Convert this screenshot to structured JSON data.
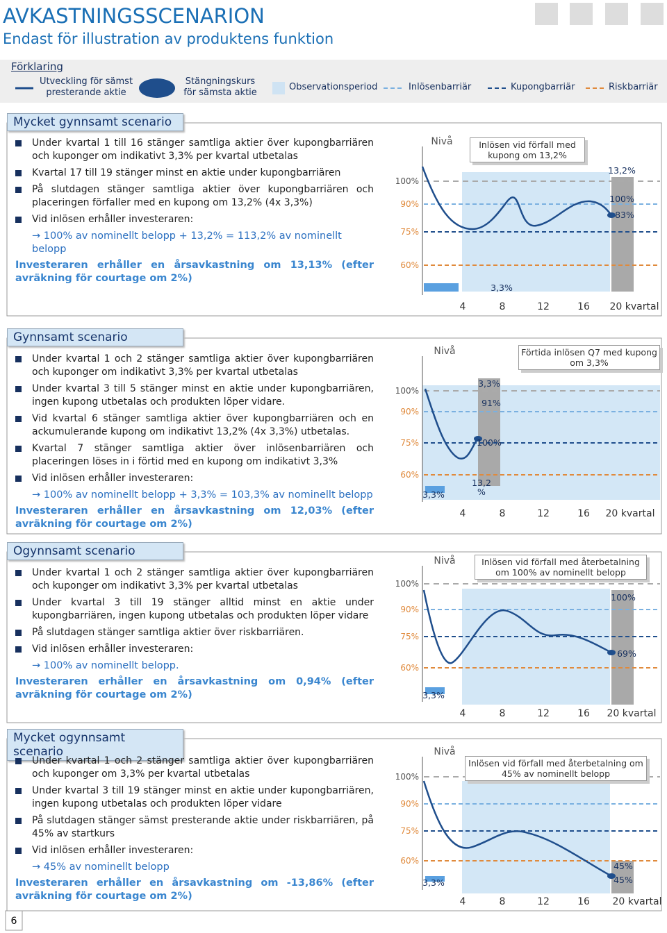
{
  "header": {
    "title": "AVKASTNINGSSCENARION",
    "subtitle": "Endast för illustration av produktens funktion"
  },
  "legend": {
    "heading": "Förklaring",
    "items": [
      "Utveckling för sämst presterande aktie",
      "Stängningskurs för sämsta aktie",
      "Observationsperiod",
      "Inlösenbarriär",
      "Kupongbarriär",
      "Riskbarriär"
    ]
  },
  "scenarios": [
    {
      "title": "Mycket gynnsamt scenario",
      "bullets": [
        "Under kvartal 1 till 16 stänger samtliga aktier över kupongbarriären och kuponger om indikativt 3,3% per kvartal utbetalas",
        "Kvartal 17 till 19 stänger minst en aktie under kupongbarriären",
        "På slutdagen stänger samtliga aktier över kupongbarriären och placeringen förfaller med en kupong om 13,2% (4x 3,3%)",
        "Vid inlösen erhåller investeraren:"
      ],
      "outcome": "100% av nominellt belopp + 13,2% = 113,2% av nominellt belopp",
      "result": "Investeraren erhåller en årsavkastning om 13,13% (efter avräkning för courtage om 2%)",
      "chart": {
        "level": "Nivå",
        "yticks": [
          "100%",
          "90%",
          "75%",
          "60%"
        ],
        "xticks": [
          "4",
          "8",
          "12",
          "16",
          "20 kvartal"
        ],
        "callout": "Inlösen vid förfall med kupong om 13,2%",
        "labels": [
          "13,2%",
          "100%",
          "83%",
          "3,3%"
        ]
      }
    },
    {
      "title": "Gynnsamt scenario",
      "bullets": [
        "Under kvartal 1 och 2 stänger samtliga aktier över kupongbarriären och kuponger om indikativt 3,3% per kvartal utbetalas",
        "Under kvartal 3 till 5 stänger minst en aktie under kupongbarriären, ingen kupong utbetalas och produkten löper vidare.",
        "Vid kvartal 6 stänger samtliga aktier över kupongbarriären och en ackumulerande kupong om indikativt 13,2% (4x 3,3%) utbetalas.",
        "Kvartal 7 stänger samtliga aktier över inlösenbarriären och placeringen löses in i förtid med en kupong om indikativt 3,3%",
        "Vid inlösen erhåller investeraren:"
      ],
      "outcome": "100% av nominellt belopp + 3,3% = 103,3% av nominellt belopp",
      "result": "Investeraren erhåller en årsavkastning om 12,03% (efter avräkning för courtage om 2%)",
      "chart": {
        "level": "Nivå",
        "yticks": [
          "100%",
          "90%",
          "75%",
          "60%"
        ],
        "xticks": [
          "4",
          "8",
          "12",
          "16",
          "20 kvartal"
        ],
        "callout": "Förtida inlösen Q7 med kupong om 3,3%",
        "labels": [
          "3,3%",
          "91%",
          "100%",
          "13,2",
          "%",
          "3,3%"
        ]
      }
    },
    {
      "title": "Ogynnsamt scenario",
      "bullets": [
        "Under kvartal 1 och 2 stänger samtliga aktier över kupongbarriären och kuponger om indikativt 3,3% per kvartal utbetalas",
        "Under kvartal 3 till 19 stänger alltid minst en aktie under kupongbarriären, ingen kupong utbetalas och produkten löper vidare",
        "På slutdagen stänger samtliga aktier över riskbarriären.",
        "Vid inlösen erhåller investeraren:"
      ],
      "outcome": "100% av nominellt belopp.",
      "result": "Investeraren erhåller en årsavkastning om 0,94% (efter avräkning för courtage om 2%)",
      "chart": {
        "level": "Nivå",
        "yticks": [
          "100%",
          "90%",
          "75%",
          "60%"
        ],
        "xticks": [
          "4",
          "8",
          "12",
          "16",
          "20 kvartal"
        ],
        "callout": "Inlösen vid förfall med återbetalning om 100% av nominellt belopp",
        "labels": [
          "100%",
          "69%",
          "3,3%"
        ]
      }
    },
    {
      "title": "Mycket ogynnsamt scenario",
      "bullets": [
        "Under kvartal 1 och 2 stänger samtliga aktier över kupongbarriären och kuponger om 3,3% per kvartal utbetalas",
        "Under kvartal 3 till 19 stänger minst en aktie under kupongbarriären, ingen kupong utbetalas och produkten löper vidare",
        "På slutdagen stänger sämst presterande aktie under riskbarriären, på 45% av startkurs",
        "Vid inlösen erhåller investeraren:"
      ],
      "outcome": "45% av nominellt belopp",
      "result": "Investeraren erhåller en årsavkastning om -13,86% (efter avräkning för courtage om 2%)",
      "chart": {
        "level": "Nivå",
        "yticks": [
          "100%",
          "90%",
          "75%",
          "60%"
        ],
        "xticks": [
          "4",
          "8",
          "12",
          "16",
          "20 kvartal"
        ],
        "callout": "Inlösen vid förfall med återbetalning om 45% av nominellt belopp",
        "labels": [
          "45%",
          "45%",
          "3,3%"
        ]
      }
    }
  ],
  "page_number": "6"
}
